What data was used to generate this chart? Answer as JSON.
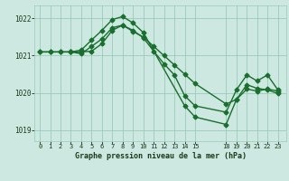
{
  "background_color": "#cce8e0",
  "grid_color": "#99ccbb",
  "line_color": "#1a6e2e",
  "title": "Graphe pression niveau de la mer (hPa)",
  "ylim": [
    1018.7,
    1022.35
  ],
  "yticks": [
    1019,
    1020,
    1021,
    1022
  ],
  "xticks": [
    0,
    1,
    2,
    3,
    4,
    5,
    6,
    7,
    8,
    9,
    10,
    11,
    12,
    13,
    14,
    15,
    18,
    19,
    20,
    21,
    22,
    23
  ],
  "xlim": [
    -0.5,
    23.8
  ],
  "lines": [
    {
      "x": [
        0,
        1,
        2,
        3,
        4,
        5,
        6,
        7,
        8,
        9,
        10,
        11,
        12,
        13,
        14,
        15,
        18,
        19,
        20,
        21,
        22,
        23
      ],
      "y": [
        1021.1,
        1021.1,
        1021.1,
        1021.1,
        1021.05,
        1021.25,
        1021.45,
        1021.75,
        1021.82,
        1021.65,
        1021.5,
        1021.25,
        1021.0,
        1020.75,
        1020.5,
        1020.25,
        1019.7,
        1019.82,
        1020.1,
        1020.05,
        1020.1,
        1020.05
      ],
      "style": "-",
      "marker": "D",
      "markersize": 2.5,
      "linewidth": 1.0
    },
    {
      "x": [
        0,
        1,
        2,
        3,
        4,
        5,
        6,
        7,
        8,
        9,
        10,
        14,
        15,
        18,
        19,
        20,
        21,
        22,
        23
      ],
      "y": [
        1021.1,
        1021.1,
        1021.1,
        1021.1,
        1021.15,
        1021.42,
        1021.68,
        1021.97,
        1022.05,
        1021.88,
        1021.62,
        1019.65,
        1019.35,
        1019.15,
        1019.82,
        1020.22,
        1020.12,
        1020.08,
        1019.98
      ],
      "style": "-",
      "marker": "D",
      "markersize": 2.5,
      "linewidth": 1.0
    },
    {
      "x": [
        3,
        4,
        5,
        6,
        7,
        8,
        9,
        10,
        11,
        12,
        13,
        14,
        15,
        18,
        19,
        20,
        21,
        22,
        23
      ],
      "y": [
        1021.1,
        1021.1,
        1021.12,
        1021.32,
        1021.68,
        1021.82,
        1021.68,
        1021.48,
        1021.12,
        1020.78,
        1020.48,
        1019.92,
        1019.65,
        1019.48,
        1020.08,
        1020.48,
        1020.32,
        1020.48,
        1020.08
      ],
      "style": "-",
      "marker": "D",
      "markersize": 2.5,
      "linewidth": 1.0
    }
  ]
}
